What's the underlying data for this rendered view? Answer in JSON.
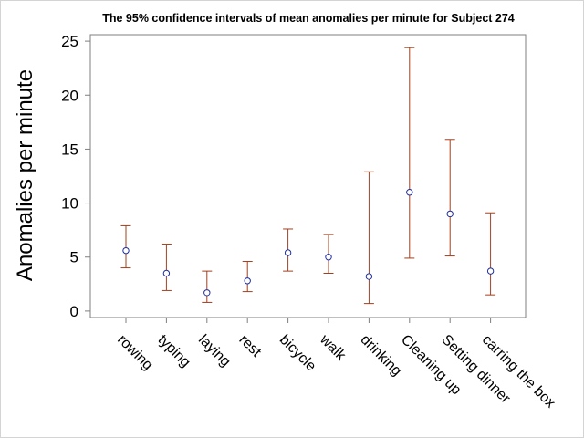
{
  "chart_data": {
    "type": "errorbar",
    "title": "The 95% confidence intervals of mean anomalies per minute for Subject 274",
    "xlabel": "",
    "ylabel": "Anomalies per minute",
    "ylim": [
      -0.6,
      25.6
    ],
    "yticks": [
      0,
      5,
      10,
      15,
      20,
      25
    ],
    "categories": [
      "rowing",
      "typing",
      "laying",
      "rest",
      "bicycle",
      "walk",
      "drinking",
      "Cleaning up",
      "Setting dinner",
      "carring the box"
    ],
    "mean": [
      5.6,
      3.5,
      1.7,
      2.8,
      5.4,
      5.0,
      3.2,
      11.0,
      9.0,
      3.7
    ],
    "lower": [
      4.0,
      1.9,
      0.8,
      1.8,
      3.7,
      3.5,
      0.7,
      4.9,
      5.1,
      1.5
    ],
    "upper": [
      7.9,
      6.2,
      3.7,
      4.6,
      7.6,
      7.1,
      12.9,
      24.4,
      15.9,
      9.1
    ],
    "grid": false,
    "legend": "none",
    "colors": {
      "errorbar": "#a0401f",
      "marker": "#1f2f9f",
      "axis": "#7f7f7f"
    }
  }
}
